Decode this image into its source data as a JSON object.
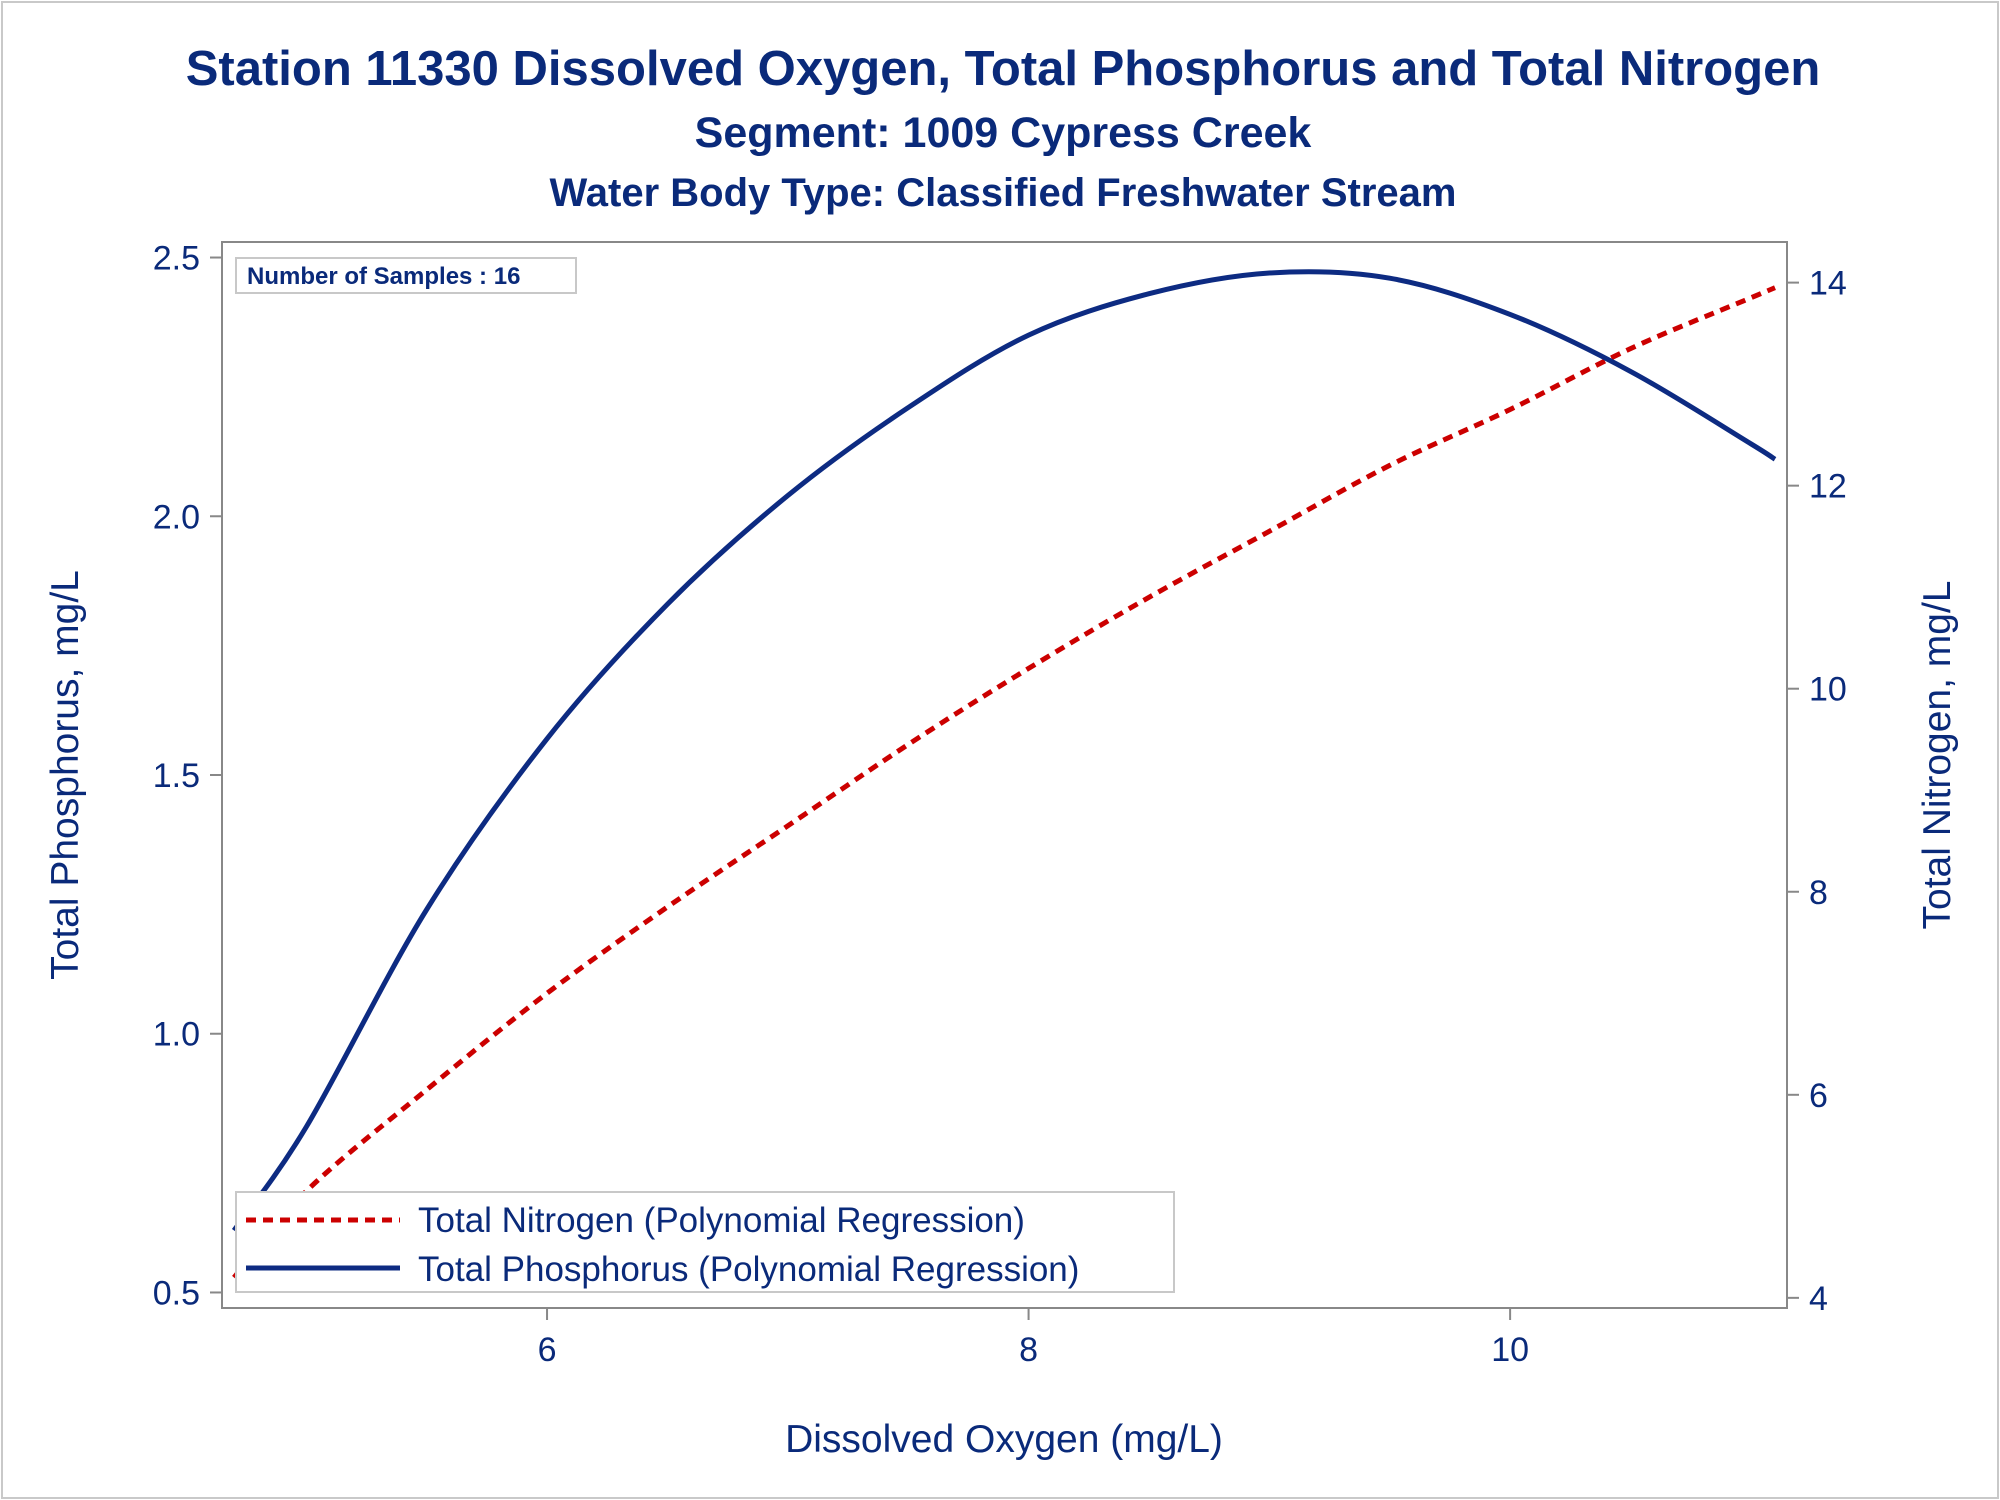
{
  "chart_data": {
    "type": "line",
    "title": "Station 11330  Dissolved Oxygen, Total Phosphorus and Total Nitrogen",
    "subtitle": "Segment: 1009  Cypress Creek",
    "subtitle2": "Water Body Type: Classified Freshwater Stream",
    "xlabel": "Dissolved Oxygen (mg/L)",
    "ylabel": "Total Phosphorus, mg/L",
    "y2label": "Total Nitrogen, mg/L",
    "annotation": "Number of Samples : 16",
    "xlim": [
      4.65,
      11.15
    ],
    "ylim": [
      0.47,
      2.53
    ],
    "y2lim": [
      3.9,
      14.4
    ],
    "xticks": [
      6,
      8,
      10
    ],
    "yticks": [
      0.5,
      1.0,
      1.5,
      2.0,
      2.5
    ],
    "yticklabels": [
      "0.5",
      "1.0",
      "1.5",
      "2.0",
      "2.5"
    ],
    "y2ticks": [
      4,
      6,
      8,
      10,
      12,
      14
    ],
    "legend_position": "bottom-left",
    "grid": false,
    "series": [
      {
        "name": "Total Nitrogen (Polynomial Regression)",
        "axis": "right",
        "color": "#cc0000",
        "style": "dashed",
        "x": [
          4.7,
          5.0,
          5.5,
          6.0,
          6.5,
          7.0,
          7.5,
          8.0,
          8.5,
          9.0,
          9.5,
          10.0,
          10.5,
          11.0,
          11.1
        ],
        "y": [
          4.2,
          5.05,
          6.05,
          7.0,
          7.85,
          8.65,
          9.45,
          10.2,
          10.9,
          11.55,
          12.2,
          12.75,
          13.35,
          13.85,
          13.95
        ]
      },
      {
        "name": "Total Phosphorus (Polynomial Regression)",
        "axis": "left",
        "color": "#0d2b82",
        "style": "solid",
        "x": [
          4.7,
          5.0,
          5.5,
          6.0,
          6.5,
          7.0,
          7.5,
          8.0,
          8.5,
          9.0,
          9.5,
          10.0,
          10.5,
          11.0,
          11.1
        ],
        "y": [
          0.62,
          0.82,
          1.24,
          1.57,
          1.83,
          2.04,
          2.21,
          2.35,
          2.43,
          2.47,
          2.46,
          2.39,
          2.28,
          2.14,
          2.11
        ]
      }
    ]
  }
}
